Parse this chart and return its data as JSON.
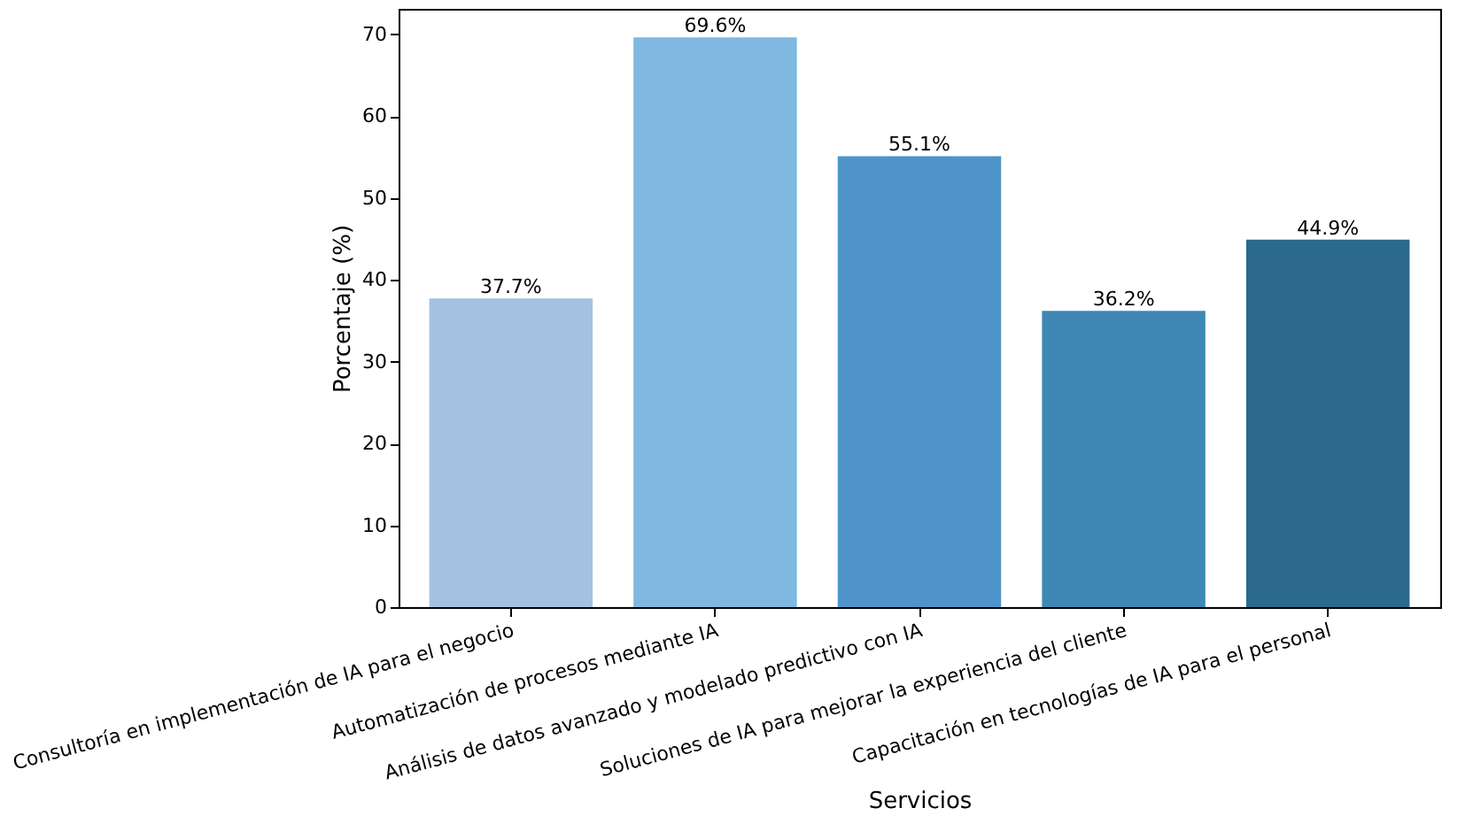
{
  "chart_data": {
    "type": "bar",
    "xlabel": "Servicios",
    "ylabel": "Porcentaje (%)",
    "categories": [
      "Consultoría en implementación de IA para el negocio",
      "Automatización de procesos mediante IA",
      "Análisis de datos avanzado y modelado predictivo con IA",
      "Soluciones de IA para mejorar la experiencia del cliente",
      "Capacitación en tecnologías de IA para el personal"
    ],
    "values": [
      37.7,
      69.6,
      55.1,
      36.2,
      44.9
    ],
    "colors": [
      "#a3c2e1",
      "#7fb8e0",
      "#4f94c8",
      "#3f88b5",
      "#2b6a8c"
    ],
    "value_labels": [
      "37.7%",
      "69.6%",
      "55.1%",
      "36.2%",
      "44.9%"
    ],
    "ylim": [
      0,
      73.1
    ],
    "yticks": [
      0,
      10,
      20,
      30,
      40,
      50,
      60,
      70
    ],
    "grid": false
  }
}
